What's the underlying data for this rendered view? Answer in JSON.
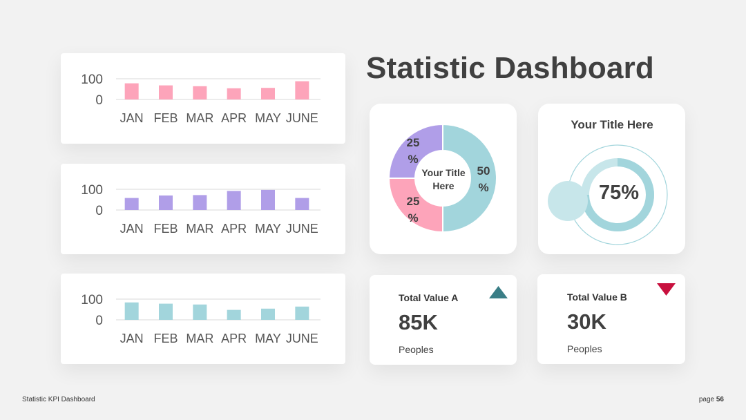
{
  "header": {
    "title": "Statistic Dashboard"
  },
  "colors": {
    "pink": "#fda4ba",
    "purple": "#b09ee8",
    "teal": "#a2d5dc",
    "teal_dark": "#3a7e86",
    "crimson": "#c8103e",
    "gauge_light": "#c7e6ea"
  },
  "chart_data": [
    {
      "type": "bar",
      "categories": [
        "JAN",
        "FEB",
        "MAR",
        "APR",
        "MAY",
        "JUNE"
      ],
      "values": [
        78,
        68,
        64,
        54,
        56,
        88
      ],
      "ylim": [
        0,
        100
      ],
      "yticks": [
        0,
        100
      ],
      "color": "#fda4ba"
    },
    {
      "type": "bar",
      "categories": [
        "JAN",
        "FEB",
        "MAR",
        "APR",
        "MAY",
        "JUNE"
      ],
      "values": [
        58,
        70,
        72,
        92,
        97,
        58
      ],
      "ylim": [
        0,
        100
      ],
      "yticks": [
        0,
        100
      ],
      "color": "#b09ee8"
    },
    {
      "type": "bar",
      "categories": [
        "JAN",
        "FEB",
        "MAR",
        "APR",
        "MAY",
        "JUNE"
      ],
      "values": [
        84,
        78,
        74,
        48,
        54,
        64
      ],
      "ylim": [
        0,
        100
      ],
      "yticks": [
        0,
        100
      ],
      "color": "#a2d5dc"
    },
    {
      "type": "pie",
      "title": "Your Title Here",
      "labels": [
        "50\n%",
        "25\n%",
        "25\n%"
      ],
      "values": [
        50,
        25,
        25
      ],
      "colors": [
        "#a2d5dc",
        "#fda4ba",
        "#b09ee8"
      ]
    }
  ],
  "donut": {
    "center_line1": "Your Title",
    "center_line2": "Here",
    "label_50_a": "50",
    "label_50_b": "%",
    "label_25_top_a": "25",
    "label_25_top_b": "%",
    "label_25_bottom_a": "25",
    "label_25_bottom_b": "%"
  },
  "gauge": {
    "title": "Your Title Here",
    "value_label": "75%",
    "value": 0.75
  },
  "kpi_a": {
    "label": "Total Value A",
    "value": "85K",
    "sub": "Peoples",
    "trend": "up"
  },
  "kpi_b": {
    "label": "Total Value B",
    "value": "30K",
    "sub": "Peoples",
    "trend": "down"
  },
  "footer": {
    "left": "Statistic KPI Dashboard",
    "page_prefix": "page",
    "page_number": "56"
  }
}
